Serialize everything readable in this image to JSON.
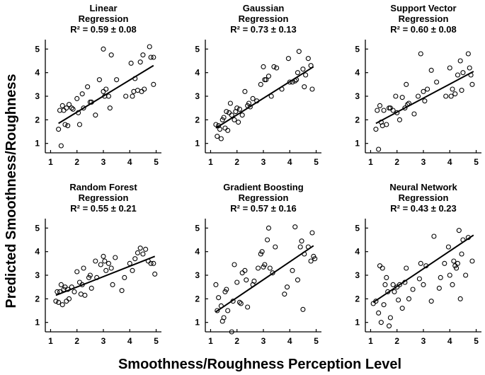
{
  "figure": {
    "xlabel": "Smoothness/Roughness Perception Level",
    "ylabel": "Predicted Smoothness/Roughness"
  },
  "chart_data": [
    {
      "type": "scatter",
      "title_line1": "Linear",
      "title_line2": "Regression",
      "stat": "R² = 0.59 ± 0.08",
      "xlim": [
        0.8,
        5.2
      ],
      "ylim": [
        0.6,
        5.4
      ],
      "xticks": [
        1,
        2,
        3,
        4,
        5
      ],
      "yticks": [
        1,
        2,
        3,
        4,
        5
      ],
      "fit": [
        [
          1.3,
          1.85
        ],
        [
          4.9,
          4.3
        ]
      ],
      "points": [
        [
          1.3,
          1.6
        ],
        [
          1.35,
          2.4
        ],
        [
          1.4,
          0.9
        ],
        [
          1.45,
          2.6
        ],
        [
          1.5,
          2.4
        ],
        [
          1.55,
          1.8
        ],
        [
          1.6,
          2.5
        ],
        [
          1.65,
          1.75
        ],
        [
          1.7,
          2.65
        ],
        [
          1.8,
          2.5
        ],
        [
          1.85,
          2.45
        ],
        [
          2.0,
          2.9
        ],
        [
          2.05,
          2.3
        ],
        [
          2.1,
          1.8
        ],
        [
          2.2,
          3.1
        ],
        [
          2.25,
          2.5
        ],
        [
          2.4,
          3.4
        ],
        [
          2.5,
          2.75
        ],
        [
          2.55,
          2.75
        ],
        [
          2.7,
          2.2
        ],
        [
          2.85,
          3.7
        ],
        [
          3.0,
          3.2
        ],
        [
          3.0,
          5.0
        ],
        [
          3.05,
          3.0
        ],
        [
          3.1,
          3.3
        ],
        [
          3.2,
          3.0
        ],
        [
          3.25,
          2.5
        ],
        [
          3.3,
          4.75
        ],
        [
          3.5,
          3.7
        ],
        [
          3.85,
          3.0
        ],
        [
          4.05,
          4.4
        ],
        [
          4.1,
          3.0
        ],
        [
          4.15,
          3.2
        ],
        [
          4.2,
          3.75
        ],
        [
          4.3,
          3.25
        ],
        [
          4.4,
          4.45
        ],
        [
          4.45,
          3.2
        ],
        [
          4.5,
          4.75
        ],
        [
          4.55,
          3.3
        ],
        [
          4.75,
          5.1
        ],
        [
          4.8,
          4.65
        ],
        [
          4.9,
          4.65
        ],
        [
          4.9,
          3.5
        ]
      ]
    },
    {
      "type": "scatter",
      "title_line1": "Gaussian",
      "title_line2": "Regression",
      "stat": "R² = 0.73 ± 0.13",
      "xlim": [
        0.8,
        5.2
      ],
      "ylim": [
        0.6,
        5.4
      ],
      "xticks": [
        1,
        2,
        3,
        4,
        5
      ],
      "yticks": [
        1,
        2,
        3,
        4,
        5
      ],
      "fit": [
        [
          1.2,
          1.65
        ],
        [
          4.9,
          4.25
        ]
      ],
      "points": [
        [
          1.2,
          1.8
        ],
        [
          1.25,
          1.3
        ],
        [
          1.3,
          1.75
        ],
        [
          1.35,
          1.6
        ],
        [
          1.4,
          1.2
        ],
        [
          1.45,
          2.0
        ],
        [
          1.5,
          2.1
        ],
        [
          1.55,
          1.65
        ],
        [
          1.6,
          2.35
        ],
        [
          1.65,
          1.55
        ],
        [
          1.7,
          2.3
        ],
        [
          1.75,
          2.7
        ],
        [
          1.8,
          2.2
        ],
        [
          1.9,
          2.0
        ],
        [
          1.95,
          2.35
        ],
        [
          2.0,
          2.5
        ],
        [
          2.05,
          1.9
        ],
        [
          2.1,
          2.45
        ],
        [
          2.2,
          2.2
        ],
        [
          2.3,
          3.2
        ],
        [
          2.4,
          2.6
        ],
        [
          2.45,
          2.7
        ],
        [
          2.5,
          2.55
        ],
        [
          2.6,
          2.9
        ],
        [
          2.75,
          2.8
        ],
        [
          2.9,
          3.5
        ],
        [
          3.0,
          4.25
        ],
        [
          3.05,
          3.7
        ],
        [
          3.1,
          3.7
        ],
        [
          3.2,
          3.85
        ],
        [
          3.3,
          3.0
        ],
        [
          3.4,
          4.25
        ],
        [
          3.5,
          4.2
        ],
        [
          3.7,
          3.3
        ],
        [
          3.95,
          4.6
        ],
        [
          4.0,
          3.6
        ],
        [
          4.1,
          3.6
        ],
        [
          4.2,
          3.65
        ],
        [
          4.25,
          3.7
        ],
        [
          4.3,
          4.0
        ],
        [
          4.35,
          4.9
        ],
        [
          4.5,
          4.15
        ],
        [
          4.55,
          3.4
        ],
        [
          4.6,
          3.9
        ],
        [
          4.7,
          4.6
        ],
        [
          4.8,
          4.3
        ],
        [
          4.85,
          3.3
        ]
      ]
    },
    {
      "type": "scatter",
      "title_line1": "Support Vector",
      "title_line2": "Regression",
      "stat": "R² = 0.60 ± 0.08",
      "xlim": [
        0.8,
        5.2
      ],
      "ylim": [
        0.6,
        5.4
      ],
      "xticks": [
        1,
        2,
        3,
        4,
        5
      ],
      "yticks": [
        1,
        2,
        3,
        4,
        5
      ],
      "fit": [
        [
          1.2,
          1.85
        ],
        [
          4.9,
          4.05
        ]
      ],
      "points": [
        [
          1.2,
          1.6
        ],
        [
          1.25,
          2.4
        ],
        [
          1.3,
          0.75
        ],
        [
          1.35,
          2.6
        ],
        [
          1.4,
          1.9
        ],
        [
          1.45,
          1.75
        ],
        [
          1.5,
          2.4
        ],
        [
          1.6,
          1.8
        ],
        [
          1.7,
          2.5
        ],
        [
          1.75,
          2.5
        ],
        [
          1.85,
          2.4
        ],
        [
          1.95,
          3.0
        ],
        [
          2.0,
          2.3
        ],
        [
          2.1,
          2.0
        ],
        [
          2.2,
          2.95
        ],
        [
          2.3,
          2.5
        ],
        [
          2.35,
          3.5
        ],
        [
          2.4,
          2.65
        ],
        [
          2.45,
          2.7
        ],
        [
          2.65,
          2.25
        ],
        [
          2.8,
          3.0
        ],
        [
          2.9,
          4.8
        ],
        [
          3.0,
          3.2
        ],
        [
          3.05,
          2.8
        ],
        [
          3.15,
          3.3
        ],
        [
          3.3,
          4.1
        ],
        [
          3.5,
          3.6
        ],
        [
          3.85,
          3.0
        ],
        [
          4.0,
          4.2
        ],
        [
          4.05,
          3.0
        ],
        [
          4.1,
          3.3
        ],
        [
          4.2,
          3.1
        ],
        [
          4.3,
          3.9
        ],
        [
          4.4,
          4.5
        ],
        [
          4.45,
          3.25
        ],
        [
          4.5,
          4.0
        ],
        [
          4.7,
          4.8
        ],
        [
          4.75,
          4.2
        ],
        [
          4.8,
          3.9
        ],
        [
          4.85,
          3.5
        ]
      ]
    },
    {
      "type": "scatter",
      "title_line1": "Random Forest",
      "title_line2": "Regression",
      "stat": "R² = 0.55 ± 0.21",
      "xlim": [
        0.8,
        5.2
      ],
      "ylim": [
        0.6,
        5.4
      ],
      "xticks": [
        1,
        2,
        3,
        4,
        5
      ],
      "yticks": [
        1,
        2,
        3,
        4,
        5
      ],
      "fit": [
        [
          1.2,
          2.15
        ],
        [
          4.95,
          3.8
        ]
      ],
      "points": [
        [
          1.2,
          1.9
        ],
        [
          1.25,
          2.3
        ],
        [
          1.3,
          1.85
        ],
        [
          1.35,
          2.3
        ],
        [
          1.4,
          2.6
        ],
        [
          1.45,
          1.75
        ],
        [
          1.5,
          2.4
        ],
        [
          1.55,
          2.5
        ],
        [
          1.6,
          1.9
        ],
        [
          1.65,
          2.4
        ],
        [
          1.7,
          2.0
        ],
        [
          1.8,
          2.5
        ],
        [
          1.9,
          2.3
        ],
        [
          2.0,
          3.15
        ],
        [
          2.1,
          2.7
        ],
        [
          2.15,
          2.2
        ],
        [
          2.2,
          2.6
        ],
        [
          2.25,
          3.3
        ],
        [
          2.3,
          2.15
        ],
        [
          2.45,
          2.9
        ],
        [
          2.5,
          3.0
        ],
        [
          2.55,
          2.45
        ],
        [
          2.7,
          3.6
        ],
        [
          2.75,
          2.9
        ],
        [
          2.9,
          3.45
        ],
        [
          3.0,
          3.8
        ],
        [
          3.05,
          3.6
        ],
        [
          3.1,
          3.2
        ],
        [
          3.2,
          3.5
        ],
        [
          3.3,
          3.3
        ],
        [
          3.35,
          2.6
        ],
        [
          3.45,
          3.75
        ],
        [
          3.7,
          2.35
        ],
        [
          3.8,
          2.9
        ],
        [
          4.0,
          3.5
        ],
        [
          4.1,
          3.2
        ],
        [
          4.2,
          3.7
        ],
        [
          4.3,
          3.95
        ],
        [
          4.4,
          4.15
        ],
        [
          4.5,
          3.9
        ],
        [
          4.6,
          4.1
        ],
        [
          4.7,
          3.6
        ],
        [
          4.8,
          3.5
        ],
        [
          4.9,
          3.5
        ],
        [
          4.95,
          3.05
        ]
      ]
    },
    {
      "type": "scatter",
      "title_line1": "Gradient Boosting",
      "title_line2": "Regression",
      "stat": "R² = 0.57 ± 0.16",
      "xlim": [
        0.8,
        5.2
      ],
      "ylim": [
        0.6,
        5.4
      ],
      "xticks": [
        1,
        2,
        3,
        4,
        5
      ],
      "yticks": [
        1,
        2,
        3,
        4,
        5
      ],
      "fit": [
        [
          1.2,
          1.45
        ],
        [
          4.9,
          4.25
        ]
      ],
      "points": [
        [
          1.2,
          2.6
        ],
        [
          1.25,
          1.5
        ],
        [
          1.3,
          2.05
        ],
        [
          1.4,
          1.7
        ],
        [
          1.45,
          1.05
        ],
        [
          1.5,
          1.2
        ],
        [
          1.55,
          2.3
        ],
        [
          1.6,
          2.4
        ],
        [
          1.65,
          1.5
        ],
        [
          1.8,
          0.6
        ],
        [
          1.85,
          1.9
        ],
        [
          1.9,
          3.45
        ],
        [
          2.0,
          2.7
        ],
        [
          2.1,
          1.85
        ],
        [
          2.15,
          1.8
        ],
        [
          2.2,
          3.1
        ],
        [
          2.3,
          3.2
        ],
        [
          2.35,
          2.8
        ],
        [
          2.4,
          1.65
        ],
        [
          2.6,
          2.6
        ],
        [
          2.65,
          2.75
        ],
        [
          2.8,
          3.3
        ],
        [
          2.9,
          3.9
        ],
        [
          2.95,
          4.0
        ],
        [
          3.0,
          3.35
        ],
        [
          3.05,
          3.45
        ],
        [
          3.15,
          4.5
        ],
        [
          3.2,
          5.0
        ],
        [
          3.25,
          3.3
        ],
        [
          3.35,
          3.1
        ],
        [
          3.45,
          4.2
        ],
        [
          3.8,
          2.2
        ],
        [
          3.9,
          2.5
        ],
        [
          4.1,
          3.2
        ],
        [
          4.2,
          5.05
        ],
        [
          4.3,
          2.8
        ],
        [
          4.4,
          4.2
        ],
        [
          4.45,
          4.45
        ],
        [
          4.5,
          1.55
        ],
        [
          4.55,
          3.9
        ],
        [
          4.7,
          4.2
        ],
        [
          4.8,
          3.6
        ],
        [
          4.85,
          4.8
        ],
        [
          4.9,
          3.8
        ],
        [
          4.95,
          3.7
        ]
      ]
    },
    {
      "type": "scatter",
      "title_line1": "Neural Network",
      "title_line2": "Regression",
      "stat": "R² = 0.43 ± 0.23",
      "xlim": [
        0.8,
        5.2
      ],
      "ylim": [
        0.6,
        5.4
      ],
      "xticks": [
        1,
        2,
        3,
        4,
        5
      ],
      "yticks": [
        1,
        2,
        3,
        4,
        5
      ],
      "fit": [
        [
          1.1,
          1.85
        ],
        [
          4.9,
          4.7
        ]
      ],
      "points": [
        [
          1.1,
          1.8
        ],
        [
          1.2,
          1.9
        ],
        [
          1.3,
          1.4
        ],
        [
          1.35,
          3.4
        ],
        [
          1.4,
          1.0
        ],
        [
          1.45,
          3.3
        ],
        [
          1.5,
          1.75
        ],
        [
          1.55,
          2.6
        ],
        [
          1.6,
          2.9
        ],
        [
          1.65,
          2.3
        ],
        [
          1.7,
          0.85
        ],
        [
          1.75,
          1.2
        ],
        [
          1.85,
          2.6
        ],
        [
          1.9,
          2.3
        ],
        [
          2.0,
          2.5
        ],
        [
          2.05,
          1.95
        ],
        [
          2.1,
          2.6
        ],
        [
          2.2,
          1.6
        ],
        [
          2.3,
          2.7
        ],
        [
          2.35,
          3.3
        ],
        [
          2.45,
          2.0
        ],
        [
          2.6,
          2.4
        ],
        [
          2.85,
          2.85
        ],
        [
          2.9,
          3.5
        ],
        [
          3.0,
          2.6
        ],
        [
          3.1,
          3.4
        ],
        [
          3.3,
          1.9
        ],
        [
          3.4,
          4.65
        ],
        [
          3.6,
          2.45
        ],
        [
          3.65,
          2.9
        ],
        [
          3.8,
          3.5
        ],
        [
          3.95,
          4.2
        ],
        [
          4.0,
          3.0
        ],
        [
          4.1,
          2.6
        ],
        [
          4.15,
          3.6
        ],
        [
          4.2,
          3.4
        ],
        [
          4.25,
          3.3
        ],
        [
          4.3,
          3.5
        ],
        [
          4.35,
          4.9
        ],
        [
          4.4,
          2.0
        ],
        [
          4.45,
          3.9
        ],
        [
          4.5,
          4.5
        ],
        [
          4.6,
          3.0
        ],
        [
          4.7,
          4.6
        ],
        [
          4.85,
          3.6
        ]
      ]
    }
  ]
}
